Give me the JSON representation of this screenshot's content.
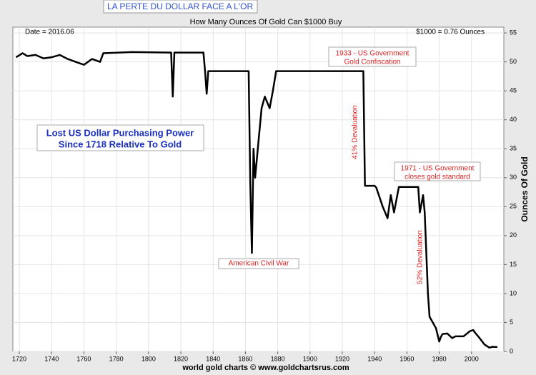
{
  "chart_data": {
    "type": "line",
    "header": "LA PERTE DU DOLLAR FACE A L'OR",
    "title": "How Many Ounces Of Gold Can $1000 Buy",
    "y_label": "Ounces Of Gold",
    "footer": "world gold charts © www.goldchartsrus.com",
    "annotations": [
      {
        "lines": [
          "Date = 2016.06"
        ]
      },
      {
        "lines": [
          "$1000 = 0.76 Ounces"
        ]
      },
      {
        "lines": [
          "Lost US Dollar Purchasing Power",
          "Since 1718 Relative To Gold"
        ]
      },
      {
        "lines": [
          "1933 - US Government",
          "Gold Confiscation"
        ]
      },
      {
        "lines": [
          "41% Devaluation"
        ]
      },
      {
        "lines": [
          "1971 - US Government",
          "closes gold standard"
        ]
      },
      {
        "lines": [
          "52% Devaluation"
        ]
      },
      {
        "lines": [
          "American Civil War"
        ]
      }
    ],
    "x": [
      1718,
      1722,
      1725,
      1730,
      1735,
      1740,
      1745,
      1750,
      1755,
      1760,
      1765,
      1770,
      1772,
      1790,
      1814,
      1815,
      1816,
      1834,
      1835,
      1836,
      1837,
      1862,
      1863,
      1864,
      1865,
      1866,
      1868,
      1870,
      1872,
      1875,
      1877,
      1879,
      1933,
      1934,
      1940,
      1941,
      1945,
      1948,
      1950,
      1952,
      1955,
      1967,
      1968,
      1970,
      1971,
      1972,
      1973,
      1974,
      1978,
      1980,
      1981,
      1982,
      1985,
      1988,
      1990,
      1995,
      1999,
      2001,
      2002,
      2005,
      2008,
      2011,
      2013,
      2016
    ],
    "series": [
      {
        "name": "Ounces Of Gold",
        "color": "#000000",
        "values": [
          50.8,
          51.5,
          51,
          51.2,
          50.6,
          50.8,
          51.2,
          50.5,
          50,
          49.5,
          50.5,
          50,
          51.5,
          51.7,
          51.6,
          44,
          51.6,
          51.6,
          48.4,
          44.5,
          48.4,
          48.4,
          29,
          17,
          35,
          30,
          36,
          42,
          44,
          42,
          45,
          48.4,
          48.4,
          28.6,
          28.6,
          28.3,
          25,
          23,
          27,
          24,
          28.4,
          28.4,
          24,
          27,
          24,
          17,
          10,
          6,
          4,
          1.7,
          2.5,
          3,
          3.1,
          2.3,
          2.6,
          2.6,
          3.5,
          3.7,
          3.3,
          2.3,
          1.2,
          0.65,
          0.8,
          0.76
        ]
      }
    ],
    "xlim": [
      1716,
      2020
    ],
    "ylim": [
      0,
      56
    ],
    "xticks": [
      1720,
      1740,
      1760,
      1780,
      1800,
      1820,
      1840,
      1860,
      1880,
      1900,
      1920,
      1940,
      1960,
      1980,
      2000
    ],
    "yticks": [
      0,
      5,
      10,
      15,
      20,
      25,
      30,
      35,
      40,
      45,
      50,
      55
    ],
    "grid": true
  }
}
